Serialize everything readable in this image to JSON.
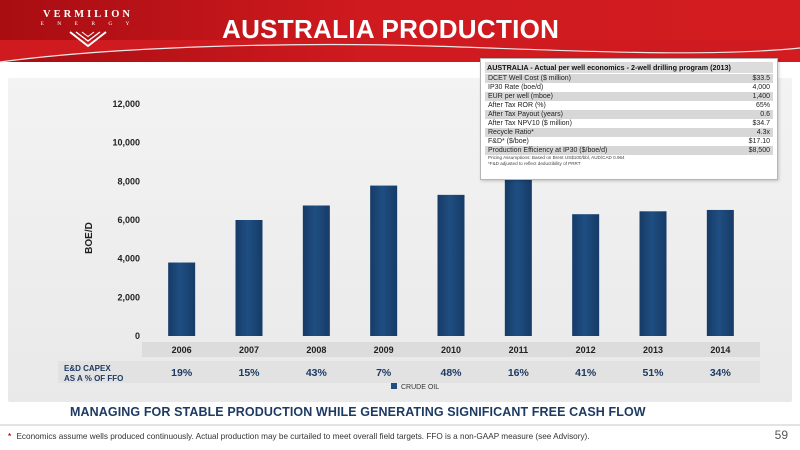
{
  "header": {
    "logo_brand": "VERMILION",
    "logo_sub": "E N E R G Y",
    "title": "AUSTRALIA PRODUCTION"
  },
  "colors": {
    "header_red": "#cf1a1f",
    "bar_navy": "#1f4e82",
    "text_navy": "#1d3a63"
  },
  "chart_data": {
    "type": "bar",
    "categories": [
      "2006",
      "2007",
      "2008",
      "2009",
      "2010",
      "2011",
      "2012",
      "2013",
      "2014"
    ],
    "series": [
      {
        "name": "CRUDE OIL",
        "values": [
          3800,
          6000,
          6750,
          7780,
          7300,
          8200,
          6300,
          6450,
          6520
        ]
      }
    ],
    "ylabel": "BOE/D",
    "ylim": [
      0,
      12000
    ],
    "yticks": [
      "0",
      "2,000",
      "4,000",
      "6,000",
      "8,000",
      "10,000",
      "12,000"
    ],
    "ytick_values": [
      0,
      2000,
      4000,
      6000,
      8000,
      10000,
      12000
    ],
    "grid": false,
    "legend": "bottom-center",
    "capex_label_line1": "E&D CAPEX",
    "capex_label_line2": "AS A % OF FFO",
    "capex_values": [
      "19%",
      "15%",
      "43%",
      "7%",
      "48%",
      "16%",
      "41%",
      "51%",
      "34%"
    ]
  },
  "economics": {
    "title": "AUSTRALIA - Actual per well economics - 2-well drilling program (2013)",
    "rows": [
      {
        "label": "DCET Well Cost ($ million)",
        "value": "$33.5"
      },
      {
        "label": "IP30 Rate (boe/d)",
        "value": "4,000"
      },
      {
        "label": "EUR per well (mboe)",
        "value": "1,400"
      },
      {
        "label": "After Tax ROR (%)",
        "value": "65%"
      },
      {
        "label": "After Tax Payout (years)",
        "value": "0.6"
      },
      {
        "label": "After Tax NPV10 ($ million)",
        "value": "$34.7"
      },
      {
        "label": "Recycle Ratio*",
        "value": "4.3x"
      },
      {
        "label": "F&D* ($/boe)",
        "value": "$17.10"
      },
      {
        "label": "Production Efficiency at IP30 ($/boe/d)",
        "value": "$8,500"
      }
    ],
    "note1": "Pricing Assumptions: Based on Brent US$100/bbl, AUD/CAD 0.964",
    "note2": "*F&D adjusted to reflect deductibility of PRRT"
  },
  "tagline": "MANAGING FOR STABLE PRODUCTION WHILE GENERATING SIGNIFICANT FREE CASH FLOW",
  "footnote": {
    "star": "*",
    "text": "Economics assume wells produced continuously.  Actual production may be curtailed to meet overall field targets.  FFO is a non-GAAP measure (see Advisory)."
  },
  "page_number": "59"
}
